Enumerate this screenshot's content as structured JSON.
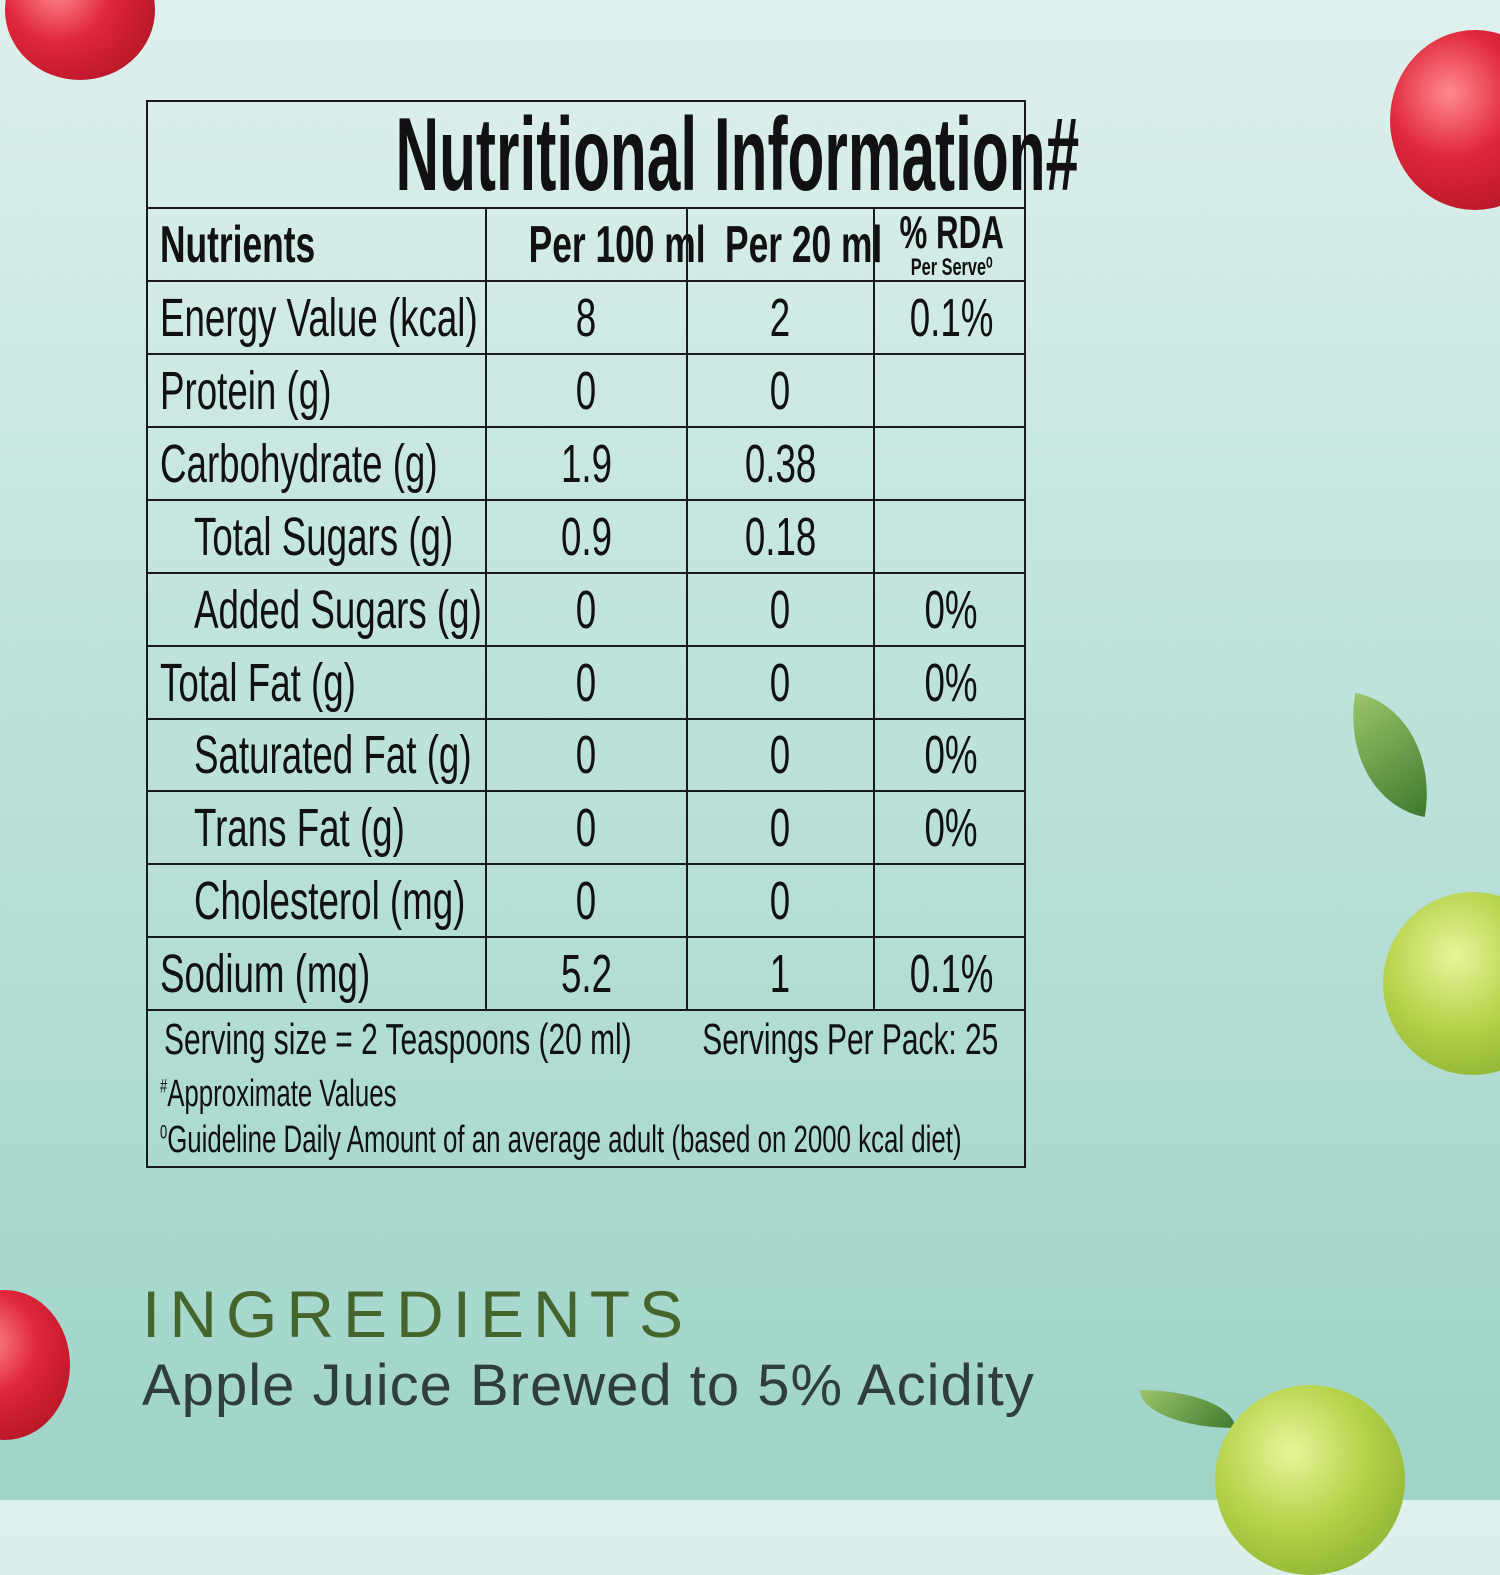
{
  "title": "Nutritional Information#",
  "headers": {
    "nutrients": "Nutrients",
    "per100": "Per 100 ml",
    "per20": "Per 20 ml",
    "rda": "% RDA",
    "rda_sub": "Per Serve⁰"
  },
  "rows": [
    {
      "name": "Energy Value (kcal)",
      "per100": "8",
      "per20": "2",
      "rda": "0.1%"
    },
    {
      "name": "Protein (g)",
      "per100": "0",
      "per20": "0",
      "rda": ""
    },
    {
      "name": "Carbohydrate (g)",
      "per100": "1.9",
      "per20": "0.38",
      "rda": ""
    },
    {
      "name": "Total Sugars (g)",
      "per100": "0.9",
      "per20": "0.18",
      "rda": ""
    },
    {
      "name": "Added Sugars (g)",
      "per100": "0",
      "per20": "0",
      "rda": "0%"
    },
    {
      "name": "Total Fat (g)",
      "per100": "0",
      "per20": "0",
      "rda": "0%"
    },
    {
      "name": "Saturated Fat (g)",
      "per100": "0",
      "per20": "0",
      "rda": "0%"
    },
    {
      "name": "Trans Fat (g)",
      "per100": "0",
      "per20": "0",
      "rda": "0%"
    },
    {
      "name": "Cholesterol (mg)",
      "per100": "0",
      "per20": "0",
      "rda": ""
    },
    {
      "name": "Sodium (mg)",
      "per100": "5.2",
      "per20": "1",
      "rda": "0.1%"
    }
  ],
  "footer": {
    "serving_size": "Serving size = 2 Teaspoons (20 ml)",
    "servings_per_pack": "Servings Per Pack: 25",
    "approx_mark": "#",
    "approx": "Approximate Values",
    "gda_mark": "0",
    "gda": "Guideline Daily Amount of an average adult (based on 2000 kcal diet)"
  },
  "ingredients": {
    "heading": "INGREDIENTS",
    "text": "Apple Juice Brewed to 5% Acidity"
  }
}
